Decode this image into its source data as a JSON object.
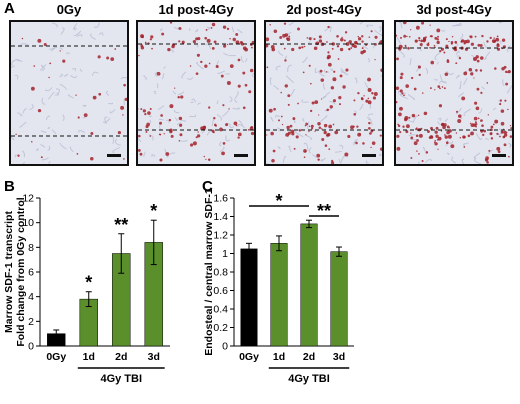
{
  "panel_labels": {
    "a": "A",
    "b": "B",
    "c": "C"
  },
  "micrographs": [
    {
      "title": "0Gy"
    },
    {
      "title": "1d post-4Gy"
    },
    {
      "title": "2d post-4Gy"
    },
    {
      "title": "3d post-4Gy"
    }
  ],
  "colors": {
    "tissue_bg": "#e4e6ef",
    "tissue_fiber": "#b7bdd3",
    "stain": "#a5222c",
    "control_bar": "#000000",
    "treated_bar": "#5a8f2c"
  },
  "chart_data": [
    {
      "type": "bar",
      "title": "",
      "ylabel": "Marrow SDF-1 transcript\nFold change from 0Gy control",
      "xlabel": "4Gy TBI",
      "categories": [
        "0Gy",
        "1d",
        "2d",
        "3d"
      ],
      "values": [
        1.0,
        3.8,
        7.5,
        8.4
      ],
      "errors": [
        0.3,
        0.6,
        1.6,
        1.8
      ],
      "significance": [
        "",
        "*",
        "**",
        "*"
      ],
      "ylim": [
        0,
        12
      ],
      "yticks": [
        0,
        2,
        4,
        6,
        8,
        10,
        12
      ],
      "grid": false,
      "bracket_categories": [
        "1d",
        "2d",
        "3d"
      ]
    },
    {
      "type": "bar",
      "title": "",
      "ylabel": "Endosteal / central marrow SDF-1",
      "xlabel": "4Gy TBI",
      "categories": [
        "0Gy",
        "1d",
        "2d",
        "3d"
      ],
      "values": [
        1.05,
        1.11,
        1.32,
        1.02
      ],
      "errors": [
        0.06,
        0.08,
        0.04,
        0.05
      ],
      "ylim": [
        0,
        1.6
      ],
      "yticks": [
        0,
        0.2,
        0.4,
        0.6,
        0.8,
        1,
        1.2,
        1.4,
        1.6
      ],
      "grid": false,
      "comparisons": [
        {
          "from": "0Gy",
          "to": "2d",
          "label": "*"
        },
        {
          "from": "2d",
          "to": "3d",
          "label": "**"
        }
      ],
      "bracket_categories": [
        "1d",
        "2d",
        "3d"
      ]
    }
  ]
}
